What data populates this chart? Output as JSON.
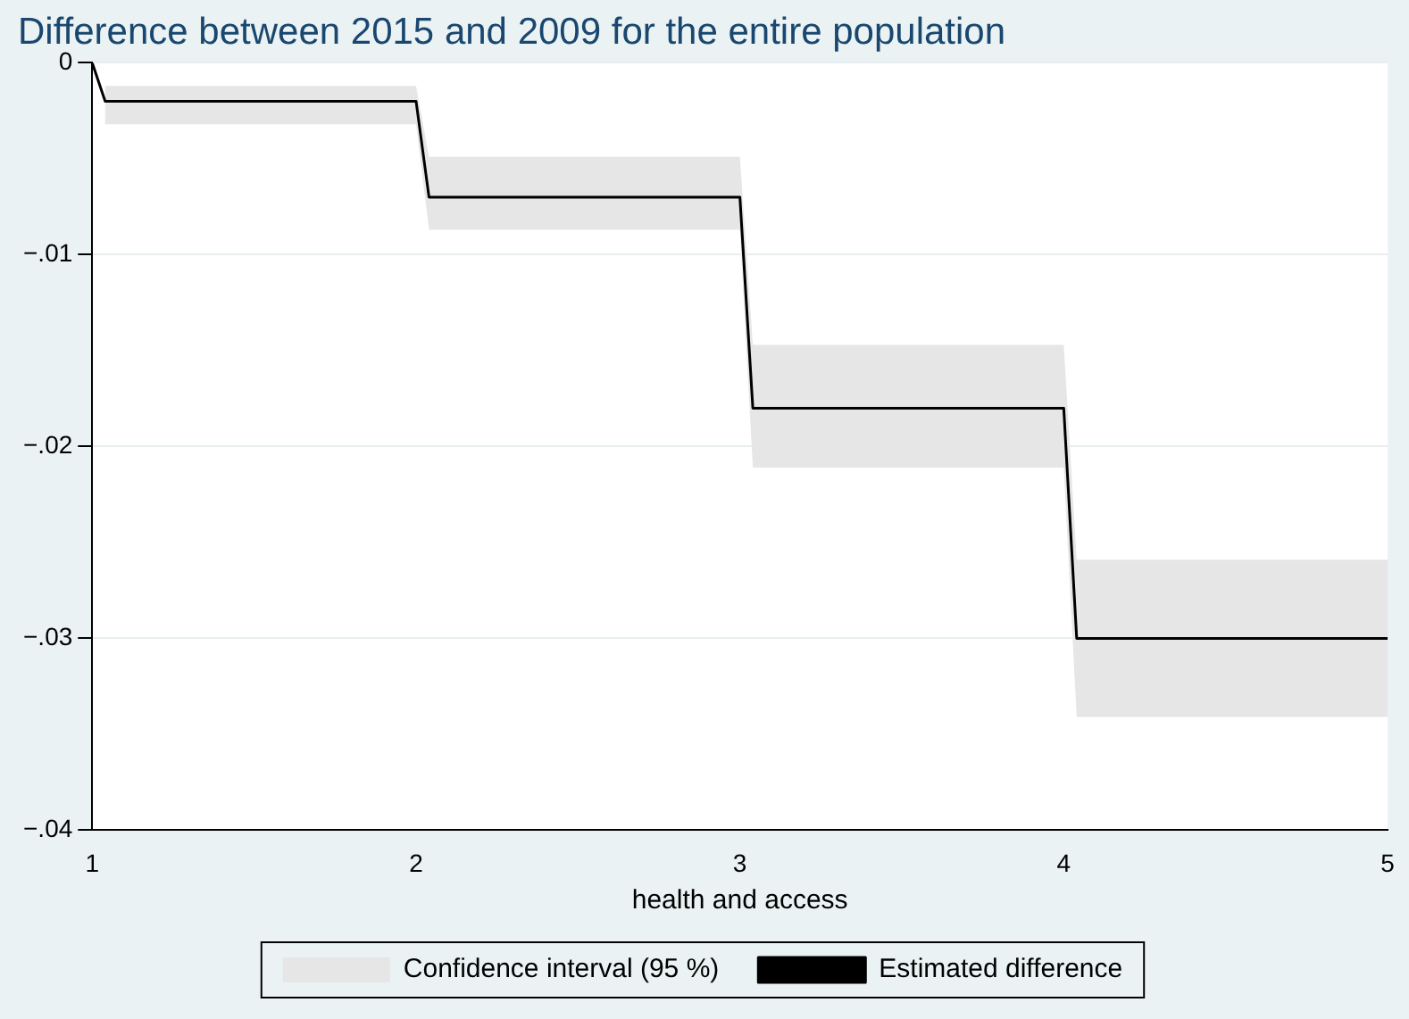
{
  "chart_data": {
    "type": "line",
    "title": "Difference between 2015 and 2009 for the entire population",
    "xlabel": "health and access",
    "series": [
      {
        "type": "area",
        "name": "Confidence interval (95 %)",
        "color": "#e6e6e6",
        "x": [
          1.04,
          2.0,
          2.04,
          3.0,
          3.04,
          4.0,
          4.04,
          5
        ],
        "values": [
          null,
          null,
          null,
          null,
          null,
          null,
          null,
          null
        ],
        "lower": [
          -0.0032,
          -0.0032,
          -0.0087,
          -0.0087,
          -0.0211,
          -0.0211,
          -0.0341,
          -0.0341
        ],
        "upper": [
          -0.0012,
          -0.0012,
          -0.0049,
          -0.0049,
          -0.0147,
          -0.0147,
          -0.0259,
          -0.0259
        ]
      },
      {
        "name": "Estimated difference",
        "color": "#000000",
        "x": [
          1,
          1.04,
          2.0,
          2.04,
          3.0,
          3.04,
          4.0,
          4.04,
          5
        ],
        "values": [
          0,
          -0.002,
          -0.002,
          -0.007,
          -0.007,
          -0.018,
          -0.018,
          -0.03,
          -0.03
        ]
      }
    ],
    "xlim": [
      1,
      5
    ],
    "xticks": [
      1,
      2,
      3,
      4,
      5
    ],
    "ylim": [
      -0.04,
      0
    ],
    "yticks": [
      {
        "value": -0.04,
        "label": "−.04"
      },
      {
        "value": -0.03,
        "label": "−.03"
      },
      {
        "value": -0.02,
        "label": "−.02"
      },
      {
        "value": -0.01,
        "label": "−.01"
      },
      {
        "value": 0,
        "label": "0"
      }
    ],
    "grid": "y",
    "legend": "bottom",
    "marker": "none",
    "line_style": "solid"
  }
}
